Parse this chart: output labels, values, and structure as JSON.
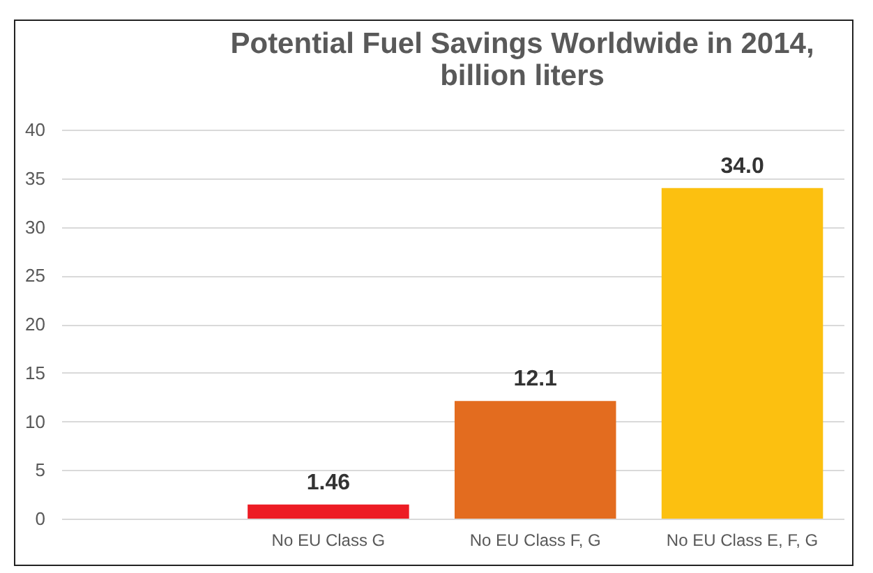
{
  "chart_data": {
    "type": "bar",
    "title": [
      "Potential Fuel Savings Worldwide in 2014,",
      "billion liters"
    ],
    "categories": [
      "No EU Class G",
      "No EU Class F, G",
      "No EU Class E, F, G"
    ],
    "values": [
      1.46,
      12.1,
      34.0
    ],
    "value_labels": [
      "1.46",
      "12.1",
      "34.0"
    ],
    "colors": [
      "#ed1c24",
      "#e36c1f",
      "#fcc010"
    ],
    "ylim": [
      0,
      40
    ],
    "yticks": [
      0,
      5,
      10,
      15,
      20,
      25,
      30,
      35,
      40
    ],
    "grid": "y",
    "legend": false
  }
}
